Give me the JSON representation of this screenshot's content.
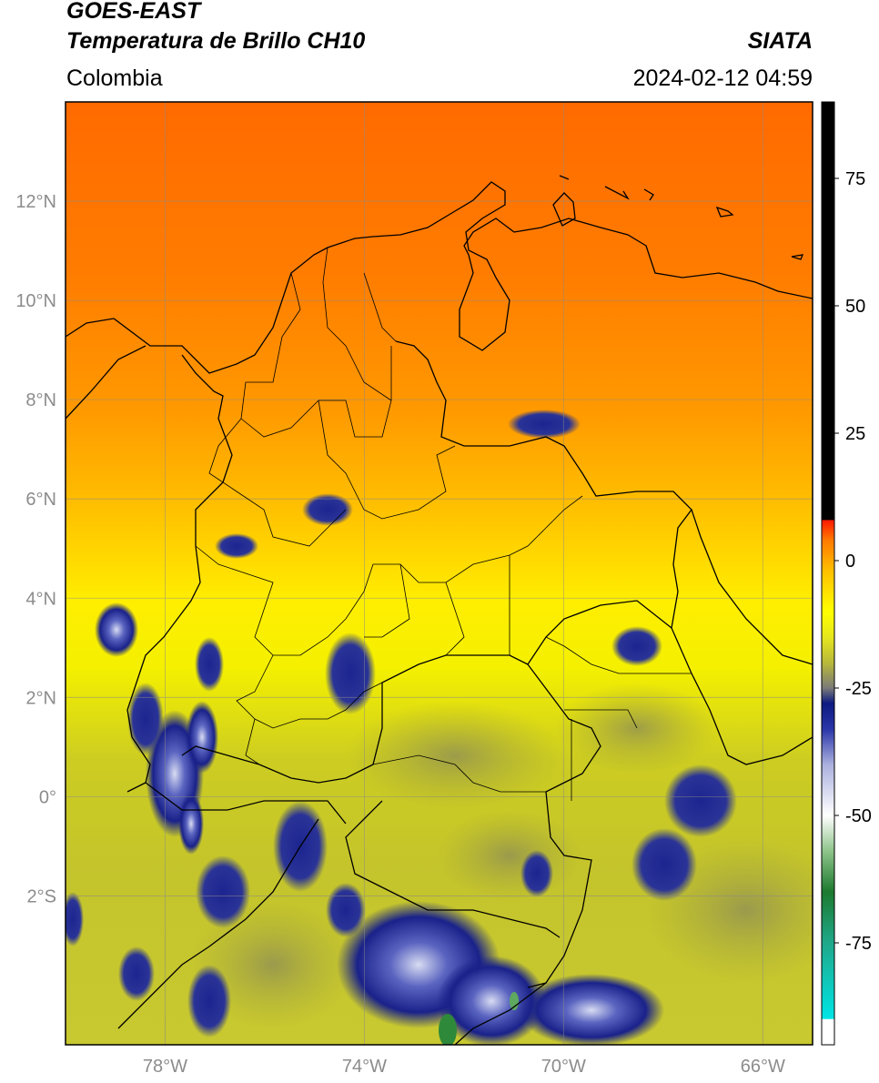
{
  "header": {
    "title_line1": "GOES-EAST",
    "title_line2": "Temperatura de Brillo CH10",
    "organization": "SIATA",
    "region": "Colombia",
    "datetime": "2024-02-12 04:59"
  },
  "map": {
    "lon_range": [
      -80,
      -65
    ],
    "lat_range": [
      -5,
      14
    ],
    "lat_ticks": [
      {
        "value": 12,
        "label": "12°N"
      },
      {
        "value": 10,
        "label": "10°N"
      },
      {
        "value": 8,
        "label": "8°N"
      },
      {
        "value": 6,
        "label": "6°N"
      },
      {
        "value": 4,
        "label": "4°N"
      },
      {
        "value": 2,
        "label": "2°N"
      },
      {
        "value": 0,
        "label": "0°"
      },
      {
        "value": -2,
        "label": "2°S"
      }
    ],
    "lon_ticks": [
      {
        "value": -78,
        "label": "78°W"
      },
      {
        "value": -74,
        "label": "74°W"
      },
      {
        "value": -70,
        "label": "70°W"
      },
      {
        "value": -66,
        "label": "66°W"
      }
    ],
    "grid": true,
    "label_color": "#8c8c8c"
  },
  "colorbar": {
    "range": [
      -95,
      90
    ],
    "ticks": [
      {
        "value": 75,
        "label": "75"
      },
      {
        "value": 50,
        "label": "50"
      },
      {
        "value": 25,
        "label": "25"
      },
      {
        "value": 0,
        "label": "0"
      },
      {
        "value": -25,
        "label": "-25"
      },
      {
        "value": -50,
        "label": "-50"
      },
      {
        "value": -75,
        "label": "-75"
      }
    ],
    "stops": [
      {
        "value": -95,
        "color": "#ffffff"
      },
      {
        "value": -90,
        "color": "#ffffff"
      },
      {
        "value": -89.9,
        "color": "#00e5e5"
      },
      {
        "value": -75,
        "color": "#1fa88a"
      },
      {
        "value": -65,
        "color": "#1c7a2e"
      },
      {
        "value": -57,
        "color": "#8ec48a"
      },
      {
        "value": -50,
        "color": "#ffffff"
      },
      {
        "value": -40,
        "color": "#aab0de"
      },
      {
        "value": -33,
        "color": "#2a35a8"
      },
      {
        "value": -28,
        "color": "#0d1a80"
      },
      {
        "value": -25,
        "color": "#7a7a78"
      },
      {
        "value": -20,
        "color": "#b9b93a"
      },
      {
        "value": -15,
        "color": "#e6e61e"
      },
      {
        "value": -10,
        "color": "#ffff00"
      },
      {
        "value": -2,
        "color": "#ffc000"
      },
      {
        "value": 4,
        "color": "#ff7a00"
      },
      {
        "value": 7.9,
        "color": "#ff1a00"
      },
      {
        "value": 8,
        "color": "#000000"
      },
      {
        "value": 90,
        "color": "#000000"
      }
    ]
  }
}
